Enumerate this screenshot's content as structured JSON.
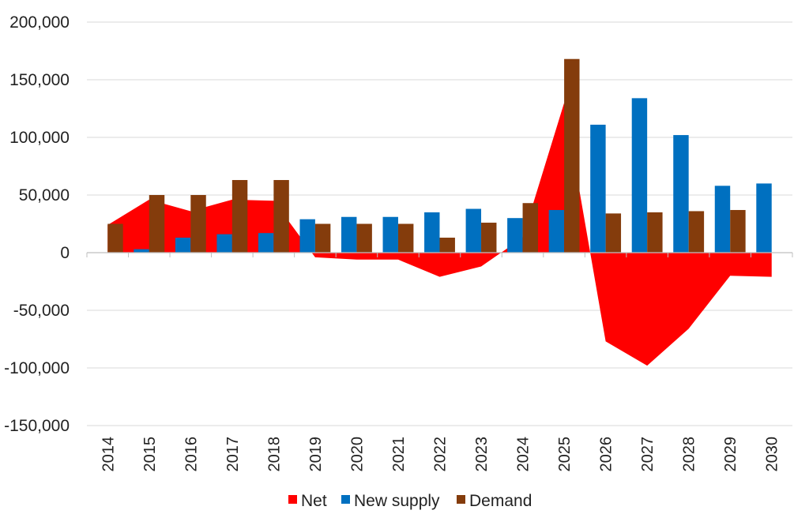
{
  "chart_data": {
    "type": "bar",
    "title": "",
    "xlabel": "",
    "ylabel": "",
    "ylim": [
      -150000,
      200000
    ],
    "yticks": [
      200000,
      150000,
      100000,
      50000,
      0,
      -50000,
      -100000,
      -150000
    ],
    "ytick_labels": [
      "200,000",
      "150,000",
      "100,000",
      "50,000",
      "0",
      "-50,000",
      "-100,000",
      "-150,000"
    ],
    "grid": true,
    "legend_position": "bottom",
    "categories": [
      "2014",
      "2015",
      "2016",
      "2017",
      "2018",
      "2019",
      "2020",
      "2021",
      "2022",
      "2023",
      "2024",
      "2025",
      "2026",
      "2027",
      "2028",
      "2029",
      "2030"
    ],
    "series": [
      {
        "name": "Net",
        "render": "area",
        "color": "#ff0000",
        "values": [
          24000,
          46000,
          36000,
          46000,
          45000,
          -4000,
          -6000,
          -6000,
          -21000,
          -12000,
          13000,
          130000,
          -77000,
          -98000,
          -66000,
          -20000,
          -21000
        ]
      },
      {
        "name": "New supply",
        "render": "bar",
        "color": "#0070c0",
        "values": [
          0,
          3000,
          13000,
          16000,
          17000,
          29000,
          31000,
          31000,
          35000,
          38000,
          30000,
          37000,
          111000,
          134000,
          102000,
          58000,
          60000
        ]
      },
      {
        "name": "Demand",
        "render": "bar",
        "color": "#843c0c",
        "values": [
          25000,
          50000,
          50000,
          63000,
          63000,
          25000,
          25000,
          25000,
          13000,
          26000,
          43000,
          168000,
          34000,
          35000,
          36000,
          37000,
          null
        ]
      }
    ]
  }
}
